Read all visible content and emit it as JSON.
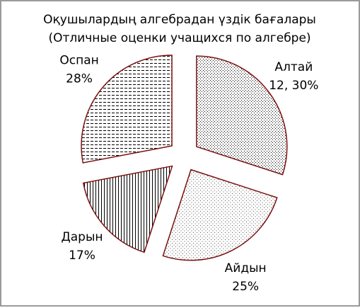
{
  "chart_data": {
    "type": "pie",
    "title": "Оқушылардың алгебрадан үздік бағалары",
    "subtitle": "(Отличные оценки учащихся по алгебре)",
    "categories": [
      "Алтай",
      "Айдын",
      "Дарын",
      "Оспан"
    ],
    "values": [
      30,
      25,
      17,
      28
    ],
    "value_labels": [
      "12,  30%",
      "25%",
      "17%",
      "28%"
    ],
    "edge_color": "#7a1010"
  }
}
